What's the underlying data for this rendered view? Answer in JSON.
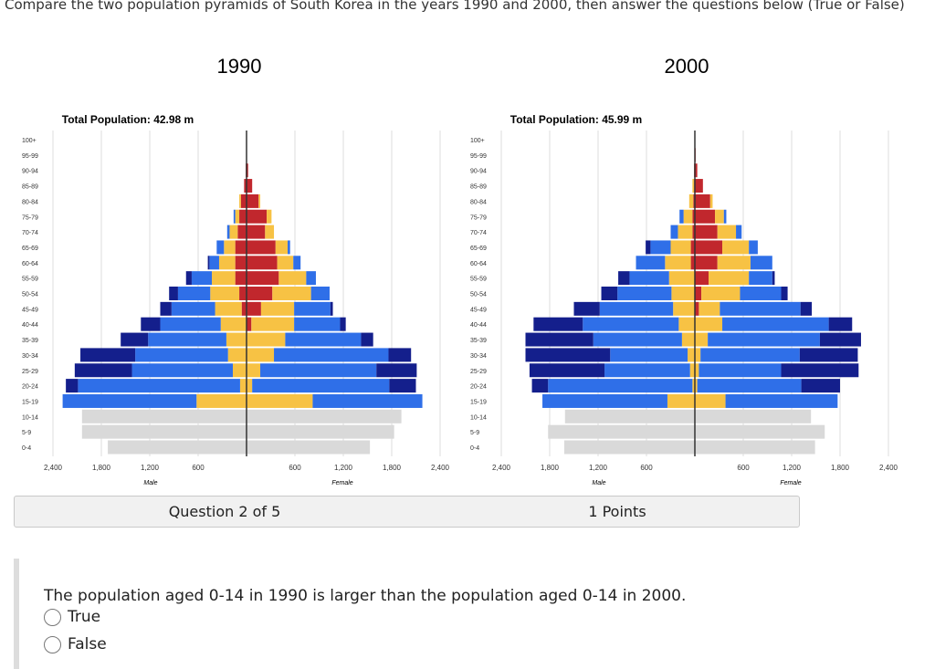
{
  "header": {
    "instruction": "Compare the two population pyramids of South Korea in the years 1990 and 2000, then answer the questions below (True or False)"
  },
  "chart_data": [
    {
      "type": "pyramid",
      "title": "1990",
      "subtitle": "Total Population: 42.98 m",
      "x_labels": [
        "Male",
        "Female"
      ],
      "categories": [
        "100+",
        "95-99",
        "90-94",
        "85-89",
        "80-84",
        "75-79",
        "70-74",
        "65-69",
        "60-64",
        "55-59",
        "50-54",
        "45-49",
        "40-44",
        "35-39",
        "30-34",
        "25-29",
        "20-24",
        "15-19",
        "10-14",
        "5-9",
        "0-4"
      ],
      "xlim": [
        0,
        2400
      ],
      "xticks": [
        {
          "value": 600,
          "label": "600"
        },
        {
          "value": 1200,
          "label": "1,200"
        },
        {
          "value": 1800,
          "label": "1,800"
        },
        {
          "value": 2400,
          "label": "2,400"
        }
      ],
      "grid": true,
      "left_series": [
        {
          "color": "#c1272d",
          "values": [
            0,
            0,
            10,
            30,
            70,
            90,
            110,
            140,
            140,
            140,
            90,
            60,
            0,
            0,
            0,
            0,
            0,
            0,
            0,
            0,
            0
          ]
        },
        {
          "color": "#f7c244",
          "values": [
            0,
            0,
            0,
            0,
            20,
            50,
            100,
            140,
            200,
            290,
            360,
            330,
            320,
            250,
            230,
            170,
            80,
            620,
            0,
            0,
            0
          ]
        },
        {
          "color": "#2f6fe8",
          "values": [
            0,
            0,
            0,
            0,
            0,
            20,
            30,
            90,
            120,
            250,
            400,
            540,
            750,
            970,
            1150,
            1250,
            2010,
            1660,
            0,
            0,
            0
          ]
        },
        {
          "color": "#141f8c",
          "values": [
            0,
            0,
            0,
            0,
            0,
            0,
            0,
            0,
            20,
            70,
            110,
            140,
            240,
            340,
            680,
            710,
            150,
            0,
            0,
            0,
            0
          ]
        },
        {
          "color": "#d9d9d9",
          "values": [
            0,
            0,
            0,
            0,
            0,
            0,
            0,
            0,
            0,
            0,
            0,
            0,
            0,
            0,
            0,
            0,
            0,
            0,
            2040,
            2040,
            1720
          ]
        }
      ],
      "right_series": [
        {
          "color": "#c1272d",
          "values": [
            0,
            0,
            20,
            70,
            150,
            250,
            230,
            360,
            380,
            400,
            320,
            180,
            60,
            0,
            0,
            0,
            0,
            0,
            0,
            0,
            0
          ]
        },
        {
          "color": "#f7c244",
          "values": [
            0,
            0,
            0,
            0,
            20,
            60,
            110,
            150,
            200,
            340,
            480,
            410,
            530,
            480,
            340,
            170,
            70,
            820,
            0,
            0,
            0
          ]
        },
        {
          "color": "#2f6fe8",
          "values": [
            0,
            0,
            0,
            0,
            0,
            0,
            0,
            30,
            90,
            120,
            230,
            450,
            570,
            940,
            1420,
            1440,
            1700,
            1360,
            0,
            0,
            0
          ]
        },
        {
          "color": "#141f8c",
          "values": [
            0,
            0,
            0,
            0,
            0,
            0,
            0,
            0,
            0,
            0,
            0,
            30,
            70,
            150,
            280,
            500,
            330,
            0,
            0,
            0,
            0
          ]
        },
        {
          "color": "#d9d9d9",
          "values": [
            0,
            0,
            0,
            0,
            0,
            0,
            0,
            0,
            0,
            0,
            0,
            0,
            0,
            0,
            0,
            0,
            0,
            0,
            1920,
            1830,
            1530
          ]
        }
      ]
    },
    {
      "type": "pyramid",
      "title": "2000",
      "subtitle": "Total Population: 45.99 m",
      "x_labels": [
        "Male",
        "Female"
      ],
      "categories": [
        "100+",
        "95-99",
        "90-94",
        "85-89",
        "80-84",
        "75-79",
        "70-74",
        "65-69",
        "60-64",
        "55-59",
        "50-54",
        "45-49",
        "40-44",
        "35-39",
        "30-34",
        "25-29",
        "20-24",
        "15-19",
        "10-14",
        "5-9",
        "0-4"
      ],
      "xlim": [
        0,
        2400
      ],
      "xticks": [
        {
          "value": 600,
          "label": "600"
        },
        {
          "value": 1200,
          "label": "1,200"
        },
        {
          "value": 1800,
          "label": "1,800"
        },
        {
          "value": 2400,
          "label": "2,400"
        }
      ],
      "grid": true,
      "left_series": [
        {
          "color": "#c1272d",
          "values": [
            0,
            0,
            10,
            10,
            20,
            30,
            30,
            50,
            50,
            0,
            0,
            0,
            0,
            0,
            0,
            0,
            0,
            0,
            0,
            0,
            0
          ]
        },
        {
          "color": "#f7c244",
          "values": [
            0,
            0,
            0,
            20,
            50,
            110,
            180,
            250,
            320,
            320,
            290,
            270,
            200,
            160,
            90,
            60,
            30,
            340,
            0,
            0,
            0
          ]
        },
        {
          "color": "#2f6fe8",
          "values": [
            0,
            0,
            0,
            0,
            0,
            50,
            90,
            250,
            360,
            490,
            670,
            910,
            1190,
            1100,
            960,
            1060,
            1790,
            1550,
            0,
            0,
            0
          ]
        },
        {
          "color": "#141f8c",
          "values": [
            0,
            0,
            0,
            0,
            0,
            0,
            0,
            60,
            0,
            140,
            200,
            320,
            610,
            840,
            1050,
            930,
            200,
            0,
            0,
            0,
            0
          ]
        },
        {
          "color": "#d9d9d9",
          "values": [
            0,
            0,
            0,
            0,
            0,
            0,
            0,
            0,
            0,
            0,
            0,
            0,
            0,
            0,
            0,
            0,
            0,
            0,
            1610,
            1820,
            1620
          ]
        }
      ],
      "right_series": [
        {
          "color": "#c1272d",
          "values": [
            0,
            10,
            30,
            100,
            190,
            250,
            280,
            340,
            280,
            170,
            80,
            50,
            0,
            0,
            0,
            0,
            0,
            0,
            0,
            0,
            0
          ]
        },
        {
          "color": "#f7c244",
          "values": [
            0,
            0,
            0,
            0,
            30,
            110,
            230,
            330,
            410,
            500,
            480,
            260,
            340,
            160,
            70,
            50,
            30,
            380,
            0,
            0,
            0
          ]
        },
        {
          "color": "#2f6fe8",
          "values": [
            0,
            0,
            0,
            0,
            0,
            30,
            70,
            110,
            270,
            290,
            510,
            1000,
            1320,
            1390,
            1230,
            1020,
            1290,
            1390,
            0,
            0,
            0
          ]
        },
        {
          "color": "#141f8c",
          "values": [
            0,
            0,
            0,
            0,
            0,
            0,
            0,
            0,
            0,
            30,
            80,
            140,
            290,
            510,
            720,
            960,
            480,
            0,
            0,
            0,
            0
          ]
        },
        {
          "color": "#d9d9d9",
          "values": [
            0,
            0,
            0,
            0,
            0,
            0,
            0,
            0,
            0,
            0,
            0,
            0,
            0,
            0,
            0,
            0,
            0,
            0,
            1440,
            1610,
            1490
          ]
        }
      ]
    }
  ],
  "question": {
    "number": "Question 2 of 5",
    "points": "1 Points",
    "text": "The population aged 0-14 in 1990 is larger than the population aged 0-14 in 2000.",
    "options": [
      "True",
      "False"
    ]
  }
}
